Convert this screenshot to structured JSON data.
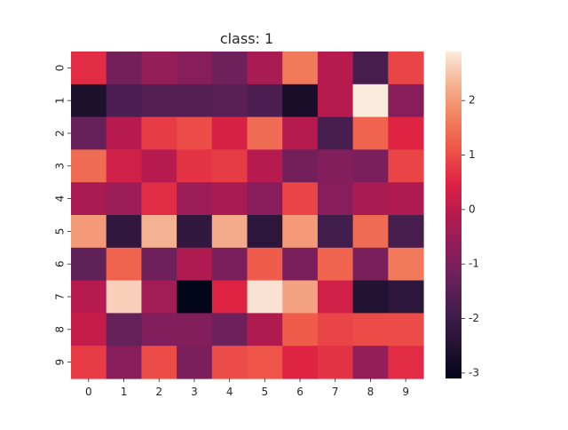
{
  "chart_data": {
    "type": "heatmap",
    "title": "class: 1",
    "xlabel": "",
    "ylabel": "",
    "x_categories": [
      "0",
      "1",
      "2",
      "3",
      "4",
      "5",
      "6",
      "7",
      "8",
      "9"
    ],
    "y_categories": [
      "0",
      "1",
      "2",
      "3",
      "4",
      "5",
      "6",
      "7",
      "8",
      "9"
    ],
    "values": [
      [
        0.6,
        -1.1,
        -0.6,
        -0.8,
        -1.2,
        -0.3,
        1.6,
        -0.1,
        -1.8,
        0.9
      ],
      [
        -2.6,
        -1.7,
        -1.6,
        -1.6,
        -1.5,
        -1.7,
        -2.7,
        -0.1,
        2.9,
        -0.8
      ],
      [
        -1.3,
        -0.1,
        0.8,
        1.0,
        0.4,
        1.4,
        -0.1,
        -1.8,
        1.3,
        0.5
      ],
      [
        1.4,
        0.3,
        -0.1,
        0.7,
        0.8,
        -0.1,
        -1.1,
        -0.9,
        -1.0,
        0.9
      ],
      [
        -0.3,
        -0.5,
        0.6,
        -0.5,
        -0.3,
        -0.8,
        0.9,
        -0.8,
        -0.3,
        -0.2
      ],
      [
        2.0,
        -2.2,
        2.3,
        -2.2,
        2.2,
        -2.3,
        2.0,
        -1.9,
        1.4,
        -1.8
      ],
      [
        -1.4,
        1.3,
        -1.2,
        -0.2,
        -1.0,
        1.2,
        -1.0,
        1.3,
        -1.0,
        1.6
      ],
      [
        -0.1,
        2.6,
        -0.4,
        -3.1,
        0.5,
        2.8,
        2.1,
        0.3,
        -2.5,
        -2.3
      ],
      [
        0.1,
        -1.3,
        -0.9,
        -0.9,
        -1.2,
        -0.2,
        1.2,
        0.9,
        1.0,
        1.0
      ],
      [
        0.8,
        -0.8,
        1.0,
        -1.0,
        1.0,
        1.1,
        0.5,
        0.7,
        -0.6,
        0.6
      ]
    ],
    "vmin": -3.1,
    "vmax": 2.9,
    "colormap": "rocket",
    "colorbar_ticks": [
      "-3",
      "-2",
      "-1",
      "0",
      "1",
      "2"
    ],
    "colorbar_tick_values": [
      -3,
      -2,
      -1,
      0,
      1,
      2
    ],
    "grid": false,
    "legend": "colorbar-right"
  }
}
